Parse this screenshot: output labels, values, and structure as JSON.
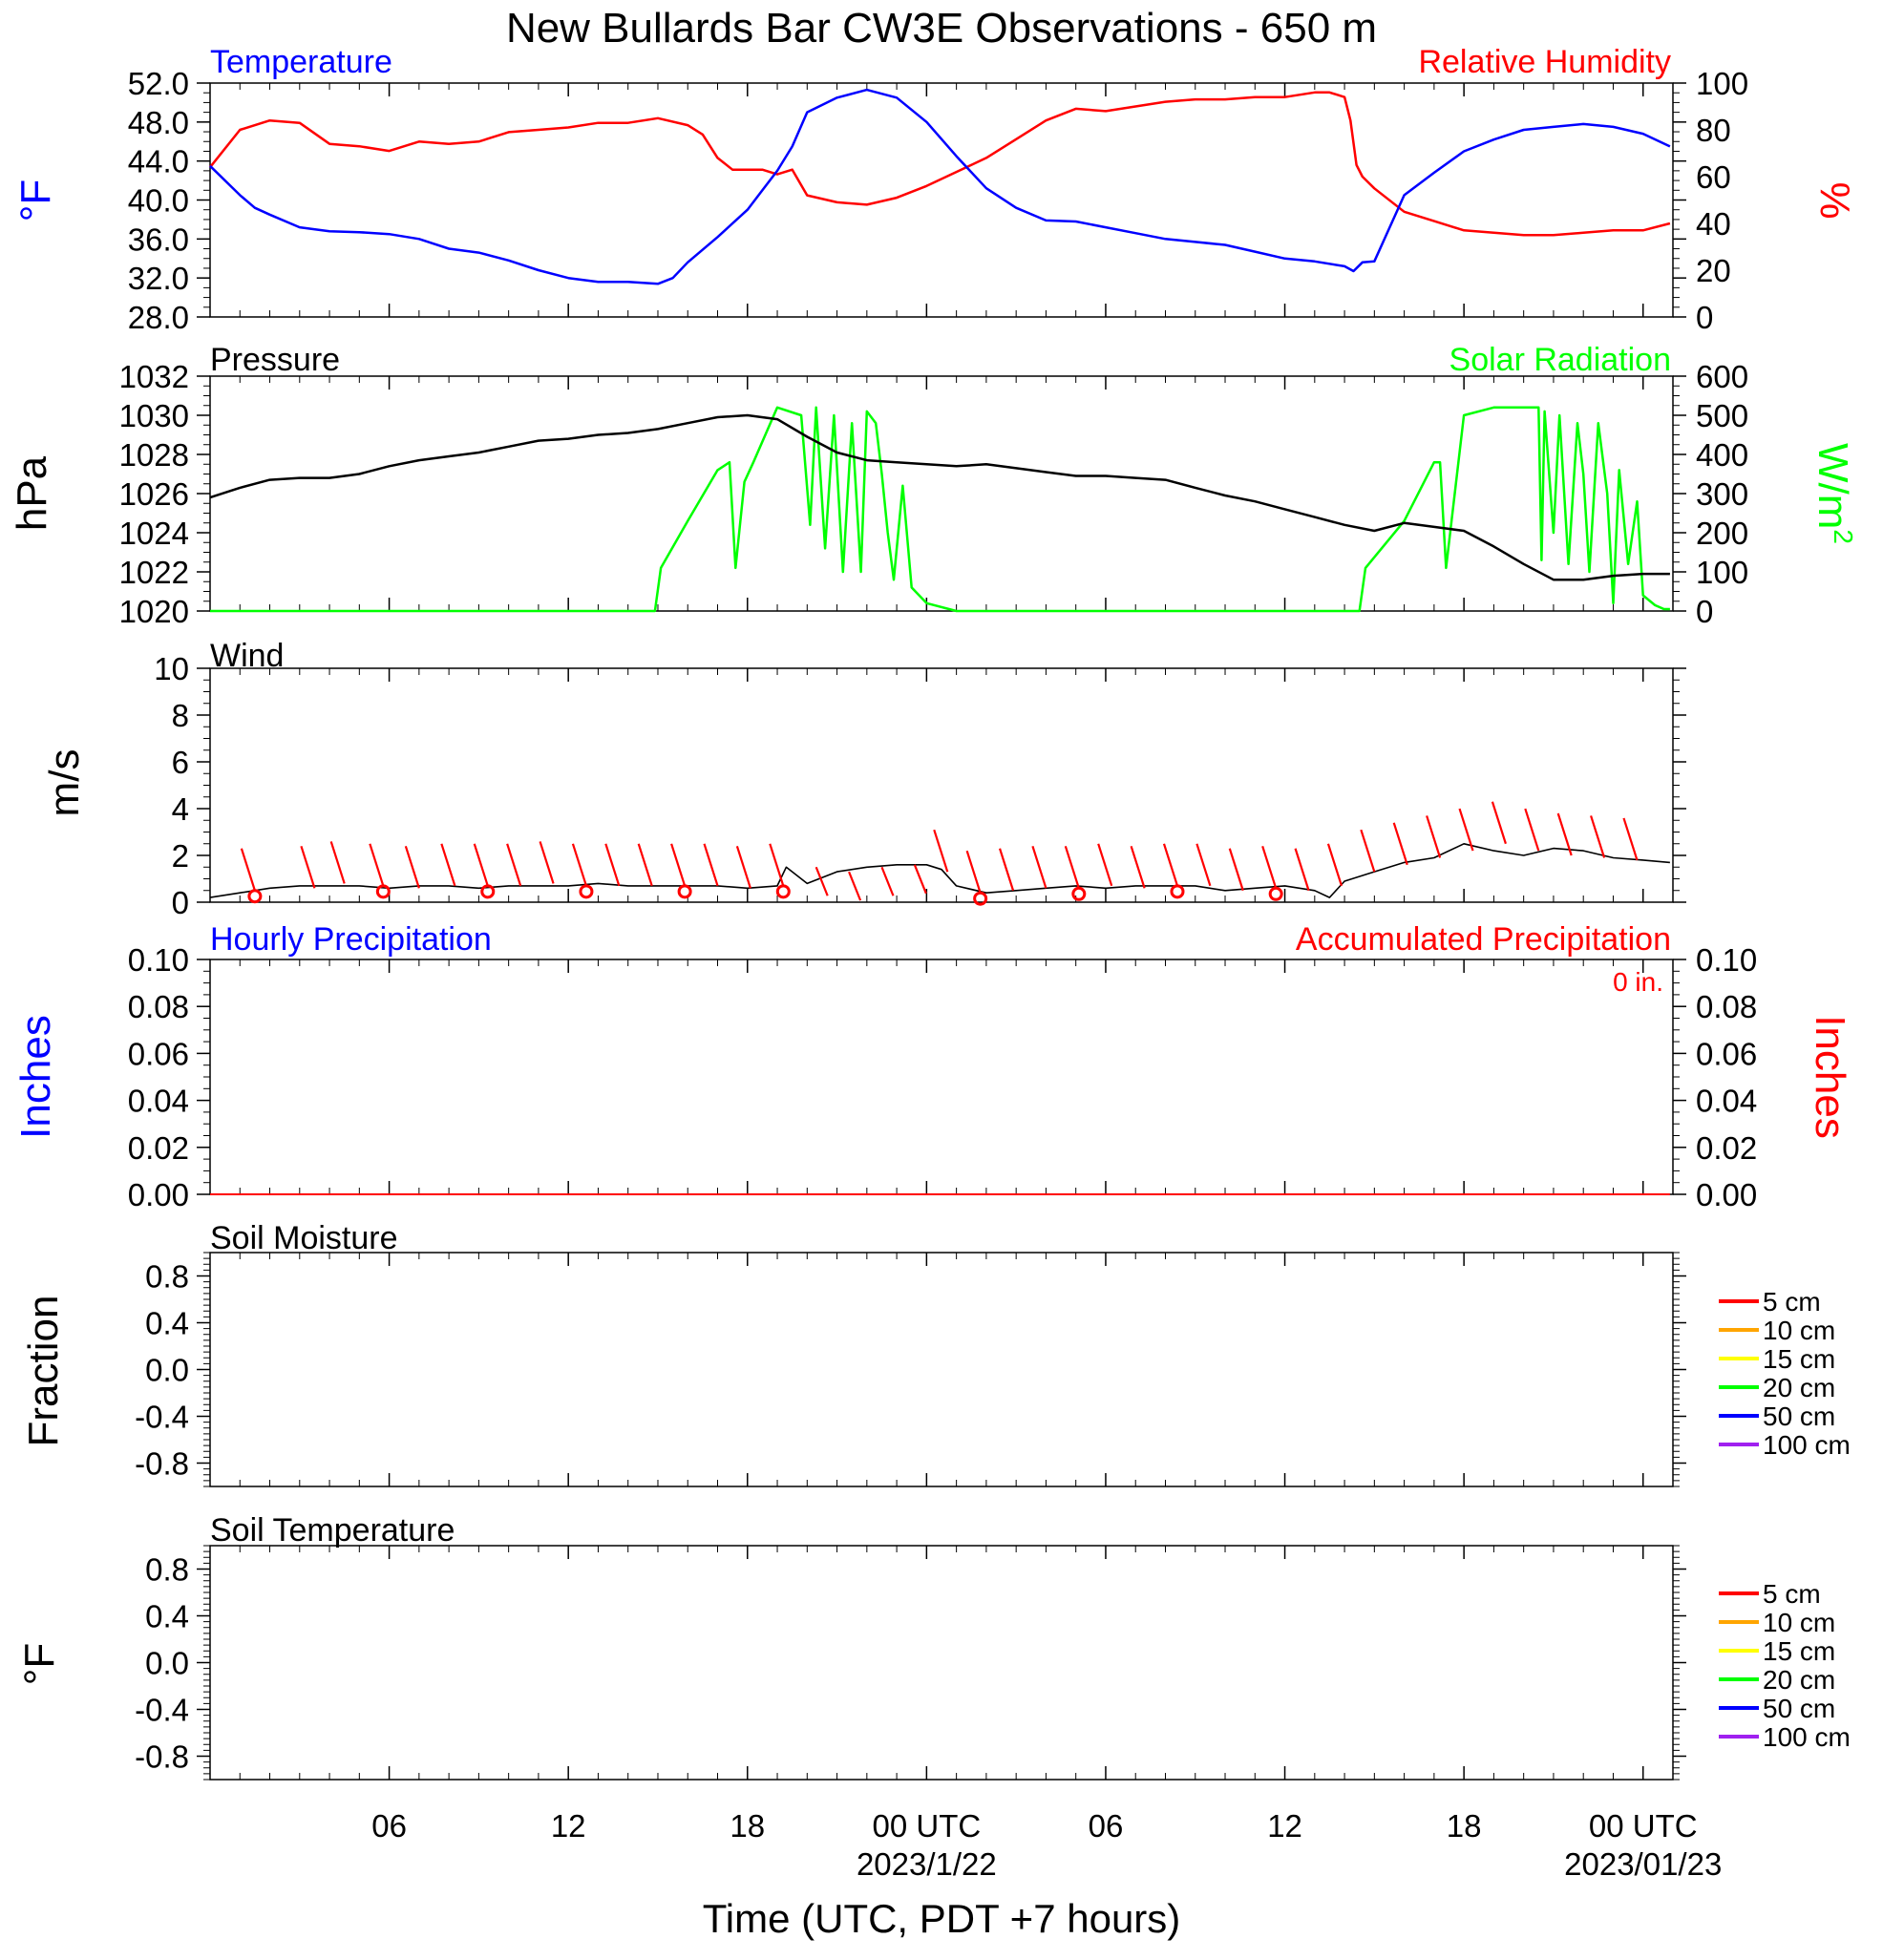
{
  "title": "New Bullards Bar CW3E Observations - 650 m",
  "xlabel": "Time (UTC, PDT +7 hours)",
  "x_ticks": [
    {
      "hour": 6,
      "label": "06",
      "sub": ""
    },
    {
      "hour": 12,
      "label": "12",
      "sub": ""
    },
    {
      "hour": 18,
      "label": "18",
      "sub": ""
    },
    {
      "hour": 24,
      "label": "00 UTC",
      "sub": "2023/1/22"
    },
    {
      "hour": 30,
      "label": "06",
      "sub": ""
    },
    {
      "hour": 36,
      "label": "12",
      "sub": ""
    },
    {
      "hour": 42,
      "label": "18",
      "sub": ""
    },
    {
      "hour": 48,
      "label": "00 UTC",
      "sub": "2023/01/23"
    }
  ],
  "panels": {
    "temp": {
      "title_left": "Temperature",
      "title_right": "Relative Humidity",
      "ylabel_left": "°F",
      "ylabel_right": "%",
      "yticks_left": [
        "52.0",
        "48.0",
        "44.0",
        "40.0",
        "36.0",
        "32.0",
        "28.0"
      ],
      "yticks_right": [
        "100",
        "80",
        "60",
        "40",
        "20",
        "0"
      ]
    },
    "pressure": {
      "title_left": "Pressure",
      "title_right": "Solar Radiation",
      "ylabel_left": "hPa",
      "ylabel_right": "W/m",
      "ylabel_right_sup": "2",
      "yticks_left": [
        "1032",
        "1030",
        "1028",
        "1026",
        "1024",
        "1022",
        "1020"
      ],
      "yticks_right": [
        "600",
        "500",
        "400",
        "300",
        "200",
        "100",
        "0"
      ]
    },
    "wind": {
      "title_left": "Wind",
      "ylabel_left": "m/s",
      "yticks_left": [
        "10",
        "8",
        "6",
        "4",
        "2",
        "0"
      ]
    },
    "precip": {
      "title_left": "Hourly Precipitation",
      "title_right": "Accumulated Precipitation",
      "ylabel_left": "Inches",
      "ylabel_right": "Inches",
      "total_label": "0 in.",
      "yticks_left": [
        "0.10",
        "0.08",
        "0.06",
        "0.04",
        "0.02",
        "0.00"
      ],
      "yticks_right": [
        "0.10",
        "0.08",
        "0.06",
        "0.04",
        "0.02",
        "0.00"
      ]
    },
    "soilm": {
      "title_left": "Soil Moisture",
      "ylabel_left": "Fraction",
      "yticks_left": [
        "0.8",
        "0.4",
        "0.0",
        "-0.4",
        "-0.8"
      ]
    },
    "soilt": {
      "title_left": "Soil Temperature",
      "ylabel_left": "°F",
      "yticks_left": [
        "0.8",
        "0.4",
        "0.0",
        "-0.4",
        "-0.8"
      ]
    }
  },
  "depth_legend": [
    {
      "label": "5 cm",
      "color": "#ff0000"
    },
    {
      "label": "10 cm",
      "color": "#ffa500"
    },
    {
      "label": "15 cm",
      "color": "#ffff00"
    },
    {
      "label": "20 cm",
      "color": "#00ff00"
    },
    {
      "label": "50 cm",
      "color": "#0000ff"
    },
    {
      "label": "100 cm",
      "color": "#a020f0"
    }
  ],
  "chart_data": [
    {
      "type": "line",
      "title": "Temperature / Relative Humidity",
      "x_unit": "hours since 2023-01-21 00 UTC",
      "xlim": [
        0,
        49
      ],
      "series": [
        {
          "name": "Temperature",
          "axis": "left",
          "unit": "°F",
          "color": "#0000ff",
          "ylim": [
            28,
            52
          ],
          "x": [
            0,
            1,
            1.5,
            2,
            3,
            4,
            5,
            6,
            7,
            8,
            9,
            10,
            11,
            12,
            13,
            14,
            15,
            15.5,
            16,
            17,
            18,
            18.5,
            19,
            19.5,
            20,
            21,
            22,
            23,
            24,
            25,
            26,
            27,
            28,
            29,
            30,
            31,
            32,
            33,
            34,
            35,
            36,
            37,
            38,
            38.3,
            38.6,
            39,
            40,
            41,
            42,
            43,
            44,
            45,
            46,
            47,
            48,
            48.9
          ],
          "y": [
            43.5,
            40.5,
            39.2,
            38.5,
            37.2,
            36.8,
            36.7,
            36.5,
            36,
            35,
            34.6,
            33.8,
            32.8,
            32,
            31.6,
            31.6,
            31.4,
            32,
            33.6,
            36.2,
            39,
            41,
            43,
            45.5,
            49,
            50.5,
            51.3,
            50.5,
            48,
            44.5,
            41.2,
            39.2,
            37.9,
            37.8,
            37.2,
            36.6,
            36,
            35.7,
            35.4,
            34.7,
            34,
            33.7,
            33.2,
            32.7,
            33.6,
            33.7,
            40.5,
            42.8,
            45,
            46.2,
            47.2,
            47.5,
            47.8,
            47.5,
            46.8,
            45.5
          ]
        },
        {
          "name": "Relative Humidity",
          "axis": "right",
          "unit": "%",
          "color": "#ff0000",
          "ylim": [
            0,
            100
          ],
          "x": [
            0,
            1,
            2,
            3,
            4,
            5,
            6,
            7,
            8,
            9,
            10,
            11,
            12,
            13,
            14,
            15,
            16,
            16.5,
            17,
            17.5,
            18,
            18.5,
            19,
            19.5,
            20,
            21,
            22,
            23,
            24,
            25,
            26,
            27,
            28,
            29,
            30,
            31,
            32,
            33,
            34,
            35,
            36,
            37,
            37.5,
            38,
            38.2,
            38.4,
            38.6,
            39,
            40,
            41,
            42,
            43,
            44,
            45,
            46,
            47,
            48,
            48.9
          ],
          "y": [
            64,
            80,
            84,
            83,
            74,
            73,
            71,
            75,
            74,
            75,
            79,
            80,
            81,
            83,
            83,
            85,
            82,
            78,
            68,
            63,
            63,
            63,
            61,
            63,
            52,
            49,
            48,
            51,
            56,
            62,
            68,
            76,
            84,
            89,
            88,
            90,
            92,
            93,
            93,
            94,
            94,
            96,
            96,
            94,
            84,
            65,
            60,
            55,
            45,
            41,
            37,
            36,
            35,
            35,
            36,
            37,
            37,
            40
          ]
        }
      ]
    },
    {
      "type": "line",
      "title": "Pressure / Solar Radiation",
      "x_unit": "hours since 2023-01-21 00 UTC",
      "xlim": [
        0,
        49
      ],
      "series": [
        {
          "name": "Pressure",
          "axis": "left",
          "unit": "hPa",
          "color": "#000000",
          "ylim": [
            1020,
            1032
          ],
          "x": [
            0,
            1,
            2,
            3,
            4,
            5,
            6,
            7,
            8,
            9,
            10,
            11,
            12,
            13,
            14,
            15,
            16,
            17,
            18,
            19,
            20,
            21,
            22,
            23,
            24,
            25,
            26,
            27,
            28,
            29,
            30,
            31,
            32,
            33,
            34,
            35,
            36,
            37,
            38,
            39,
            40,
            41,
            42,
            43,
            44,
            45,
            46,
            47,
            48,
            48.9
          ],
          "y": [
            1025.8,
            1026.3,
            1026.7,
            1026.8,
            1026.8,
            1027.0,
            1027.4,
            1027.7,
            1027.9,
            1028.1,
            1028.4,
            1028.7,
            1028.8,
            1029.0,
            1029.1,
            1029.3,
            1029.6,
            1029.9,
            1030.0,
            1029.8,
            1028.9,
            1028.1,
            1027.7,
            1027.6,
            1027.5,
            1027.4,
            1027.5,
            1027.3,
            1027.1,
            1026.9,
            1026.9,
            1026.8,
            1026.7,
            1026.3,
            1025.9,
            1025.6,
            1025.2,
            1024.8,
            1024.4,
            1024.1,
            1024.5,
            1024.3,
            1024.1,
            1023.3,
            1022.4,
            1021.6,
            1021.6,
            1021.8,
            1021.9,
            1021.9
          ]
        },
        {
          "name": "Solar Radiation",
          "axis": "right",
          "unit": "W/m2",
          "color": "#00ff00",
          "ylim": [
            0,
            600
          ],
          "x": [
            0,
            14.9,
            15.1,
            16,
            17,
            17.4,
            17.6,
            17.9,
            18.2,
            19,
            19.8,
            20.1,
            20.3,
            20.6,
            20.9,
            21.2,
            21.5,
            21.8,
            22.0,
            22.3,
            22.5,
            22.7,
            22.9,
            23.2,
            23.5,
            24,
            25,
            36,
            38.5,
            38.7,
            40,
            41,
            41.2,
            41.4,
            42,
            43,
            44.5,
            44.6,
            44.7,
            45,
            45.2,
            45.5,
            45.8,
            46,
            46.2,
            46.5,
            46.8,
            47,
            47.2,
            47.5,
            47.8,
            48,
            48.4,
            48.7,
            48.9
          ],
          "y": [
            0,
            0,
            110,
            230,
            360,
            380,
            110,
            330,
            380,
            520,
            500,
            220,
            520,
            160,
            500,
            100,
            480,
            100,
            510,
            480,
            350,
            200,
            80,
            320,
            60,
            20,
            0,
            0,
            0,
            110,
            230,
            380,
            380,
            110,
            500,
            520,
            520,
            130,
            510,
            200,
            500,
            120,
            480,
            350,
            100,
            480,
            300,
            20,
            360,
            120,
            280,
            40,
            15,
            5,
            5
          ]
        }
      ]
    },
    {
      "type": "line",
      "title": "Wind",
      "x_unit": "hours since 2023-01-21 00 UTC",
      "xlim": [
        0,
        49
      ],
      "ylabel": "m/s",
      "ylim": [
        0,
        10
      ],
      "series": [
        {
          "name": "Wind speed",
          "unit": "m/s",
          "color": "#000000",
          "x": [
            0,
            1,
            2,
            3,
            4,
            5,
            6,
            7,
            8,
            9,
            10,
            11,
            12,
            13,
            14,
            15,
            16,
            17,
            18,
            19,
            19.3,
            20,
            21,
            22,
            23,
            24,
            24.5,
            25,
            26,
            27,
            28,
            29,
            30,
            31,
            32,
            33,
            34,
            35,
            36,
            37,
            37.5,
            38,
            39,
            40,
            41,
            42,
            43,
            44,
            45,
            46,
            47,
            48,
            48.9
          ],
          "y": [
            0.2,
            0.4,
            0.6,
            0.7,
            0.7,
            0.7,
            0.6,
            0.7,
            0.7,
            0.6,
            0.7,
            0.7,
            0.7,
            0.8,
            0.7,
            0.7,
            0.7,
            0.7,
            0.6,
            0.7,
            1.5,
            0.8,
            1.3,
            1.5,
            1.6,
            1.6,
            1.4,
            0.7,
            0.4,
            0.5,
            0.6,
            0.7,
            0.6,
            0.7,
            0.7,
            0.7,
            0.5,
            0.6,
            0.7,
            0.5,
            0.2,
            0.9,
            1.3,
            1.7,
            1.9,
            2.5,
            2.2,
            2.0,
            2.3,
            2.2,
            1.9,
            1.8,
            1.7
          ]
        },
        {
          "name": "Wind direction barbs",
          "unit": "m/s",
          "color": "#ff0000",
          "x": [
            1.5,
            3.5,
            4.5,
            5.8,
            7,
            8.2,
            9.3,
            10.4,
            11.5,
            12.6,
            13.7,
            14.8,
            15.9,
            17.0,
            18.1,
            19.2,
            20.3,
            21.4,
            22.5,
            23.6,
            24.7,
            25.8,
            26.9,
            28,
            29.1,
            30.2,
            31.3,
            32.4,
            33.5,
            34.6,
            35.7,
            36.8,
            37.9,
            39,
            40.1,
            41.2,
            42.3,
            43.4,
            44.5,
            45.6,
            46.7,
            47.8
          ],
          "y": [
            0.5,
            0.6,
            0.8,
            0.7,
            0.6,
            0.7,
            0.7,
            0.7,
            0.8,
            0.7,
            0.7,
            0.7,
            0.7,
            0.7,
            0.6,
            0.7,
            1.5,
            1.3,
            1.5,
            1.6,
            1.3,
            0.4,
            0.5,
            0.6,
            0.6,
            0.7,
            0.6,
            0.7,
            0.7,
            0.5,
            0.6,
            0.5,
            0.7,
            1.3,
            1.6,
            1.9,
            2.2,
            2.5,
            2.2,
            2.0,
            1.9,
            1.8
          ]
        }
      ]
    },
    {
      "type": "line",
      "title": "Hourly / Accumulated Precipitation",
      "x_unit": "hours since 2023-01-21 00 UTC",
      "xlim": [
        0,
        49
      ],
      "ylim": [
        0,
        0.1
      ],
      "series": [
        {
          "name": "Hourly Precipitation",
          "axis": "left",
          "unit": "in",
          "color": "#0000ff",
          "x": [
            0,
            48.9
          ],
          "y": [
            0,
            0
          ]
        },
        {
          "name": "Accumulated Precipitation",
          "axis": "right",
          "unit": "in",
          "color": "#ff0000",
          "x": [
            0,
            48.9
          ],
          "y": [
            0,
            0
          ]
        }
      ]
    },
    {
      "type": "line",
      "title": "Soil Moisture",
      "ylim": [
        -1,
        1
      ],
      "series": []
    },
    {
      "type": "line",
      "title": "Soil Temperature",
      "ylim": [
        -1,
        1
      ],
      "series": []
    }
  ]
}
